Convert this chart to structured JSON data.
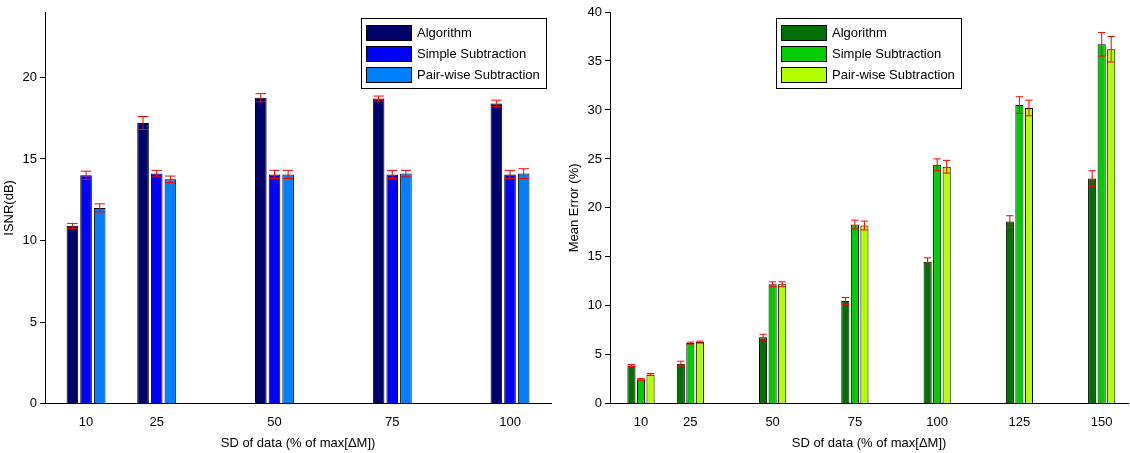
{
  "chart_data": [
    {
      "type": "bar",
      "xlabel": "SD of data (% of max[ΔM])",
      "ylabel": "ISNR(dB)",
      "x": [
        10,
        25,
        50,
        75,
        100
      ],
      "xlim": [
        1.3,
        108.7
      ],
      "xticks": [
        10,
        25,
        50,
        75,
        100
      ],
      "ylim": [
        0,
        24
      ],
      "yticks": [
        0,
        5,
        10,
        15,
        20
      ],
      "grid": false,
      "legend": "top right",
      "series": [
        {
          "name": "Algorithm",
          "color": "#00006b",
          "values": [
            10.9,
            17.2,
            18.75,
            18.7,
            18.4
          ],
          "errors": [
            0.15,
            0.4,
            0.25,
            0.15,
            0.2
          ]
        },
        {
          "name": "Simple Subtraction",
          "color": "#0000ff",
          "values": [
            14.0,
            14.1,
            14.05,
            14.05,
            14.05
          ],
          "errors": [
            0.25,
            0.2,
            0.25,
            0.25,
            0.25
          ]
        },
        {
          "name": "Pair-wise Subtraction",
          "color": "#0080ff",
          "values": [
            12.0,
            13.75,
            14.05,
            14.1,
            14.1
          ],
          "errors": [
            0.25,
            0.2,
            0.25,
            0.2,
            0.3
          ]
        }
      ]
    },
    {
      "type": "bar",
      "xlabel": "SD of data (% of max[ΔM])",
      "ylabel": "Mean Error (%)",
      "x": [
        10,
        25,
        50,
        75,
        100,
        125,
        150
      ],
      "xlim": [
        0.6,
        158
      ],
      "xticks": [
        10,
        25,
        50,
        75,
        100,
        125,
        150
      ],
      "ylim": [
        0,
        40
      ],
      "yticks": [
        0,
        5,
        10,
        15,
        20,
        25,
        30,
        35,
        40
      ],
      "grid": false,
      "legend": "top",
      "series": [
        {
          "name": "Algorithm",
          "color": "#007000",
          "values": [
            3.9,
            4.1,
            6.8,
            10.5,
            14.5,
            18.6,
            23.0
          ],
          "errors": [
            0.1,
            0.25,
            0.3,
            0.35,
            0.4,
            0.6,
            0.8
          ]
        },
        {
          "name": "Simple Subtraction",
          "color": "#00cc00",
          "values": [
            2.5,
            6.2,
            12.2,
            18.3,
            24.4,
            30.5,
            36.7
          ],
          "errors": [
            0.1,
            0.1,
            0.25,
            0.45,
            0.6,
            0.85,
            1.2
          ]
        },
        {
          "name": "Pair-wise Subtraction",
          "color": "#b3ff00",
          "values": [
            3.0,
            6.3,
            12.2,
            18.2,
            24.2,
            30.2,
            36.2
          ],
          "errors": [
            0.1,
            0.1,
            0.25,
            0.45,
            0.65,
            0.8,
            1.3
          ]
        }
      ]
    }
  ]
}
